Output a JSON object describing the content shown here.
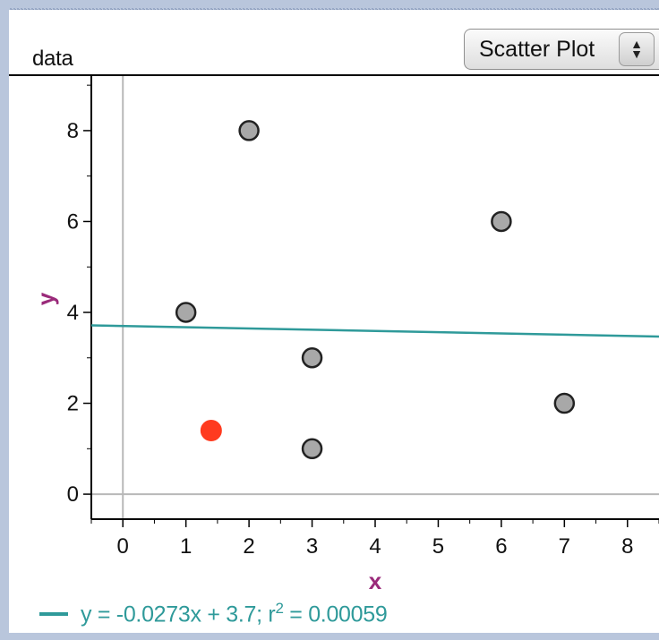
{
  "panel": {
    "dataset_label": "data",
    "plot_type_select": {
      "selected": "Scatter Plot",
      "arrows": "▲\n▼"
    }
  },
  "chart_data": {
    "type": "scatter",
    "xlabel": "x",
    "ylabel": "y",
    "xlim": [
      -0.5,
      8.5
    ],
    "ylim": [
      -0.55,
      9.2
    ],
    "x_ticks": [
      0,
      1,
      2,
      3,
      4,
      5,
      6,
      7,
      8
    ],
    "y_ticks": [
      0,
      2,
      4,
      6,
      8
    ],
    "series": [
      {
        "points": [
          {
            "x": 1,
            "y": 4
          },
          {
            "x": 2,
            "y": 8
          },
          {
            "x": 3,
            "y": 3
          },
          {
            "x": 3,
            "y": 1
          },
          {
            "x": 6,
            "y": 6
          },
          {
            "x": 7,
            "y": 2
          }
        ],
        "color": "#a8a8a8",
        "edge_color": "#222222"
      }
    ],
    "highlighted_point": {
      "x": 1.4,
      "y": 1.4,
      "color": "#ff3b1f"
    },
    "regression": {
      "slope": -0.0273,
      "intercept": 3.7,
      "label_pre": "y = -0.0273x + 3.7; r",
      "label_sup": "2",
      "label_post": " = 0.00059",
      "color": "#2f9a9a"
    },
    "axis_color": "#000000",
    "zero_line_color": "#b8b8b8",
    "label_color": "#9a2a7a"
  }
}
